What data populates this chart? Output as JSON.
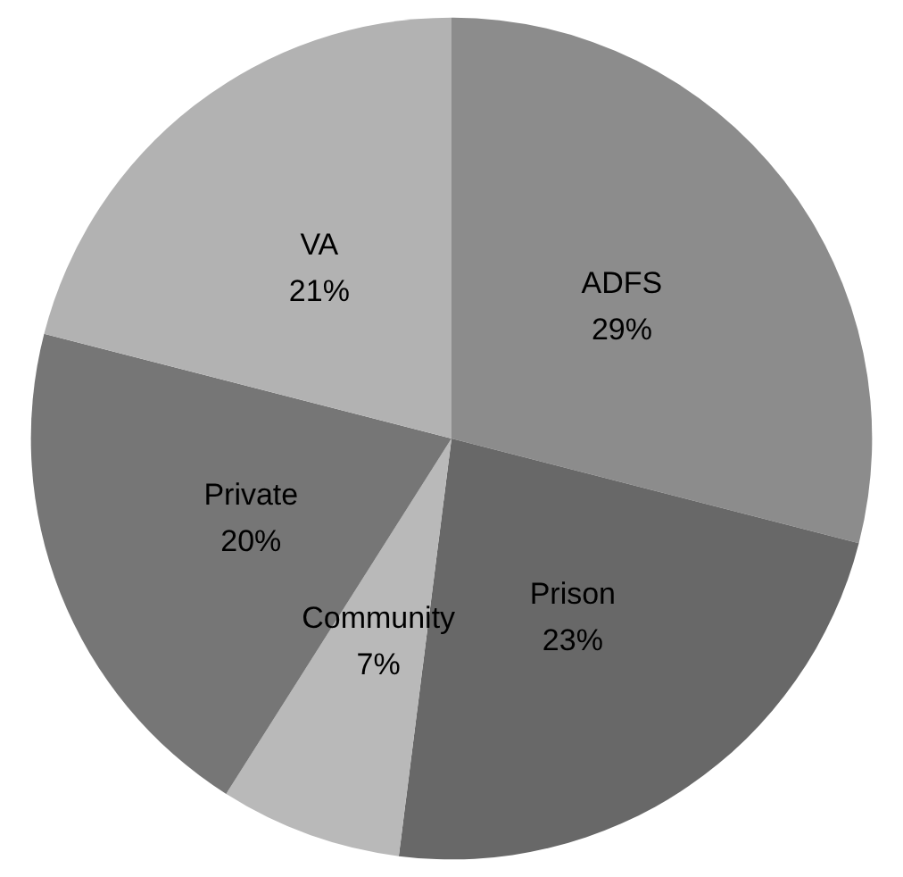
{
  "chart_data": {
    "type": "pie",
    "categories": [
      "ADFS",
      "Prison",
      "Community",
      "Private",
      "VA"
    ],
    "values": [
      29,
      23,
      7,
      20,
      21
    ],
    "value_labels": [
      "29%",
      "23%",
      "7%",
      "20%",
      "21%"
    ],
    "colors": [
      "#8c8c8c",
      "#686868",
      "#b9b9b9",
      "#767676",
      "#b2b2b2"
    ],
    "legend": false
  }
}
